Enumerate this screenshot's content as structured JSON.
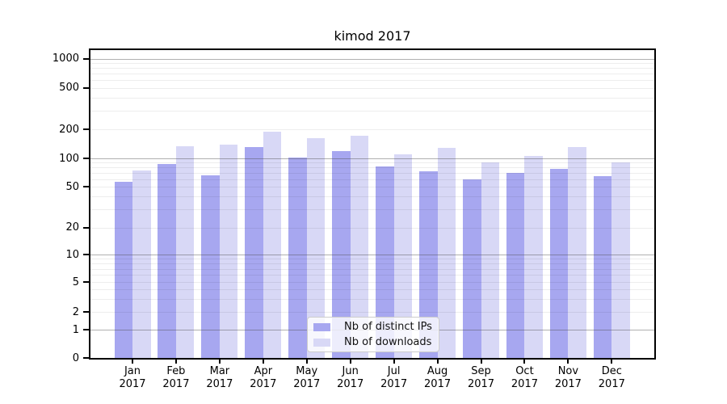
{
  "title": "kimod 2017",
  "chart_data": {
    "type": "bar",
    "title": "kimod 2017",
    "x_months": [
      "Jan",
      "Feb",
      "Mar",
      "Apr",
      "May",
      "Jun",
      "Jul",
      "Aug",
      "Sep",
      "Oct",
      "Nov",
      "Dec"
    ],
    "x_year": "2017",
    "series": [
      {
        "name": "Nb of distinct IPs",
        "color": "#a7a7f0",
        "values": [
          56,
          87,
          66,
          131,
          101,
          118,
          82,
          73,
          60,
          70,
          77,
          65
        ]
      },
      {
        "name": "Nb of downloads",
        "color": "#d8d8f6",
        "values": [
          74,
          134,
          138,
          190,
          163,
          170,
          111,
          128,
          90,
          107,
          130,
          90
        ]
      }
    ],
    "y_axis": {
      "scale": "symlog",
      "ticks": [
        0,
        1,
        2,
        5,
        10,
        20,
        50,
        100,
        200,
        500,
        1000
      ],
      "major_gridlines": [
        1,
        10,
        100,
        1000
      ],
      "range": [
        0,
        1000
      ]
    },
    "grid": "horizontal, major and minor, drawn over bars",
    "legend": {
      "position": "lower-center",
      "entries": [
        "Nb of distinct IPs",
        "Nb of downloads"
      ]
    }
  }
}
